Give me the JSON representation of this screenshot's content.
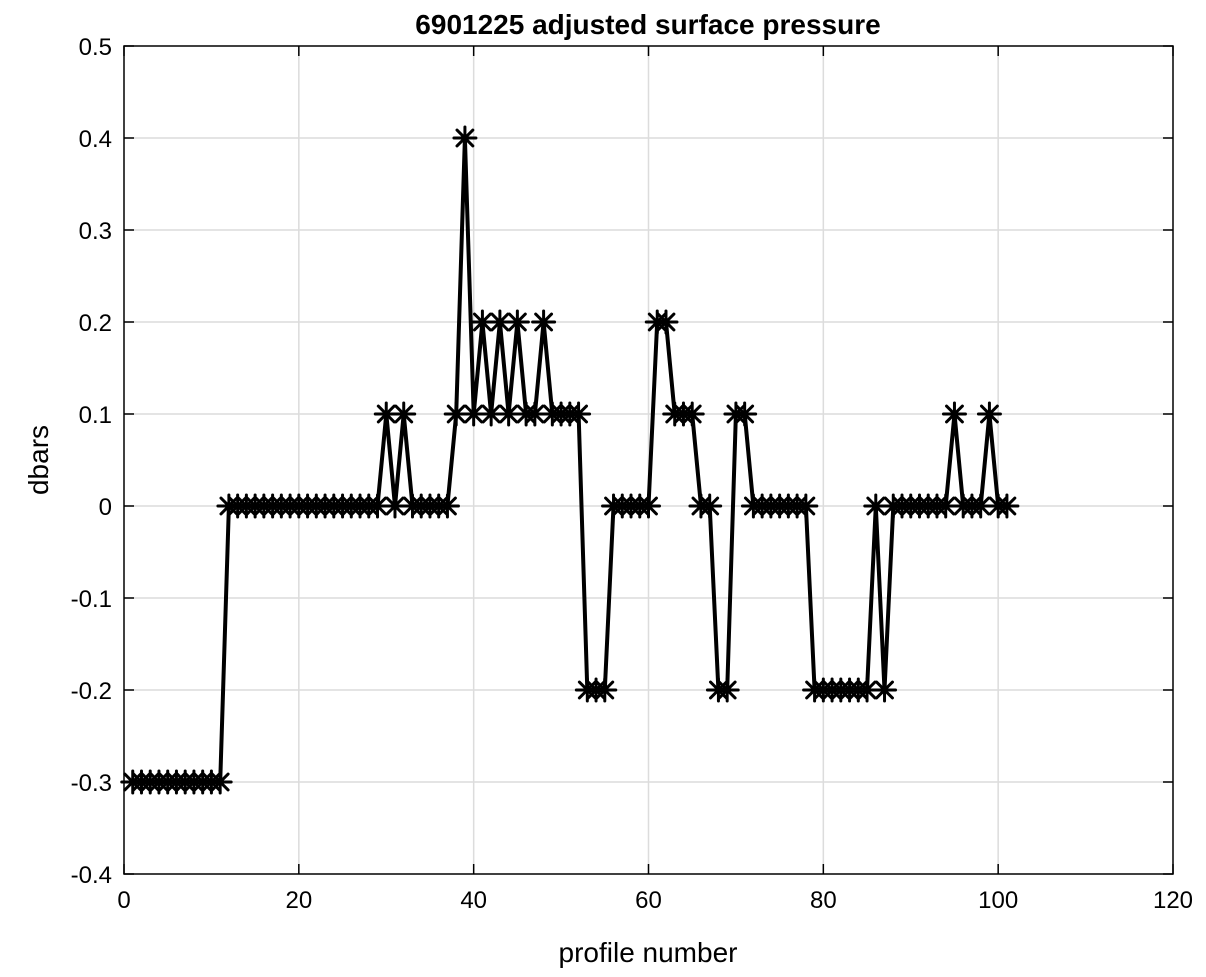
{
  "chart_data": {
    "type": "line",
    "title": "6901225 adjusted surface pressure",
    "xlabel": "profile number",
    "ylabel": "dbars",
    "xlim": [
      0,
      120
    ],
    "ylim": [
      -0.4,
      0.5
    ],
    "xticks": [
      0,
      20,
      40,
      60,
      80,
      100,
      120
    ],
    "xtick_labels": [
      "0",
      "20",
      "40",
      "60",
      "80",
      "100",
      "120"
    ],
    "yticks": [
      -0.4,
      -0.3,
      -0.2,
      -0.1,
      0,
      0.1,
      0.2,
      0.3,
      0.4,
      0.5
    ],
    "ytick_labels": [
      "-0.4",
      "-0.3",
      "-0.2",
      "-0.1",
      "0",
      "0.1",
      "0.2",
      "0.3",
      "0.4",
      "0.5"
    ],
    "grid": true,
    "series": [
      {
        "color": "#000000",
        "marker": "asterisk",
        "x": [
          1,
          2,
          3,
          4,
          5,
          6,
          7,
          8,
          9,
          10,
          11,
          12,
          13,
          14,
          15,
          16,
          17,
          18,
          19,
          20,
          21,
          22,
          23,
          24,
          25,
          26,
          27,
          28,
          29,
          30,
          31,
          32,
          33,
          34,
          35,
          36,
          37,
          38,
          39,
          40,
          41,
          42,
          43,
          44,
          45,
          46,
          47,
          48,
          49,
          50,
          51,
          52,
          53,
          54,
          55,
          56,
          57,
          58,
          59,
          60,
          61,
          62,
          63,
          64,
          65,
          66,
          67,
          68,
          69,
          70,
          71,
          72,
          73,
          74,
          75,
          76,
          77,
          78,
          79,
          80,
          81,
          82,
          83,
          84,
          85,
          86,
          87,
          88,
          89,
          90,
          91,
          92,
          93,
          94,
          95,
          96,
          97,
          98,
          99,
          100,
          101
        ],
        "y": [
          -0.3,
          -0.3,
          -0.3,
          -0.3,
          -0.3,
          -0.3,
          -0.3,
          -0.3,
          -0.3,
          -0.3,
          -0.3,
          0,
          0,
          0,
          0,
          0,
          0,
          0,
          0,
          0,
          0,
          0,
          0,
          0,
          0,
          0,
          0,
          0,
          0,
          0.1,
          0,
          0.1,
          0,
          0,
          0,
          0,
          0,
          0.1,
          0.4,
          0.1,
          0.2,
          0.1,
          0.2,
          0.1,
          0.2,
          0.1,
          0.1,
          0.2,
          0.1,
          0.1,
          0.1,
          0.1,
          -0.2,
          -0.2,
          -0.2,
          0,
          0,
          0,
          0,
          0,
          0.2,
          0.2,
          0.1,
          0.1,
          0.1,
          0,
          0,
          -0.2,
          -0.2,
          0.1,
          0.1,
          0,
          0,
          0,
          0,
          0,
          0,
          0,
          -0.2,
          -0.2,
          -0.2,
          -0.2,
          -0.2,
          -0.2,
          -0.2,
          0,
          -0.2,
          0,
          0,
          0,
          0,
          0,
          0,
          0,
          0.1,
          0,
          0,
          0,
          0.1,
          0,
          0
        ]
      }
    ]
  }
}
